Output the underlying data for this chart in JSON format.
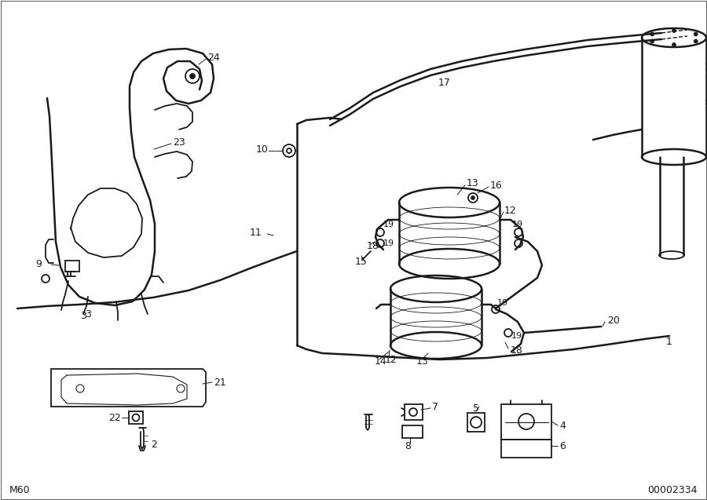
{
  "bg_color": "#ffffff",
  "line_color": "#1a1a1a",
  "bottom_left": "M60",
  "bottom_right": "00002334",
  "fig_w": 9.0,
  "fig_h": 6.37,
  "dpi": 100
}
